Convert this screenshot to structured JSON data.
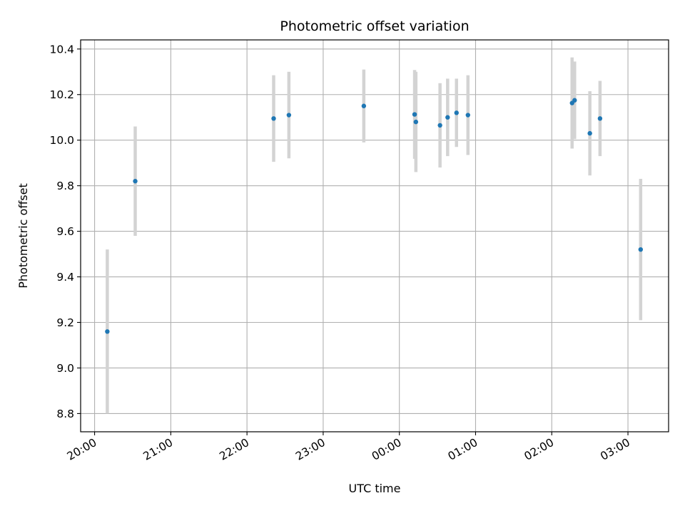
{
  "chart_data": {
    "type": "scatter",
    "title": "Photometric offset variation",
    "xlabel": "UTC time",
    "ylabel": "Photometric offset",
    "x_unit": "hours (UTC, clock time wrapping past midnight)",
    "xlim": [
      "19:49",
      "03:32"
    ],
    "ylim": [
      8.72,
      10.44
    ],
    "x_ticks": [
      "20:00",
      "21:00",
      "22:00",
      "23:00",
      "00:00",
      "01:00",
      "02:00",
      "03:00"
    ],
    "y_ticks": [
      8.8,
      9.0,
      9.2,
      9.4,
      9.6,
      9.8,
      10.0,
      10.2,
      10.4
    ],
    "y_tick_labels": [
      "8.8",
      "9.0",
      "9.2",
      "9.4",
      "9.6",
      "9.8",
      "10.0",
      "10.2",
      "10.4"
    ],
    "grid": true,
    "colors": {
      "point": "#1f77b4",
      "errorbar": "#d3d3d3",
      "grid": "#b0b0b0"
    },
    "series": [
      {
        "points": [
          {
            "x": "20:10",
            "y": 9.16,
            "yerr": 0.36
          },
          {
            "x": "20:32",
            "y": 9.82,
            "yerr": 0.24
          },
          {
            "x": "22:21",
            "y": 10.095,
            "yerr": 0.19
          },
          {
            "x": "22:33",
            "y": 10.11,
            "yerr": 0.19
          },
          {
            "x": "23:32",
            "y": 10.15,
            "yerr": 0.16
          },
          {
            "x": "00:12",
            "y": 10.113,
            "yerr": 0.195
          },
          {
            "x": "00:13",
            "y": 10.08,
            "yerr": 0.22
          },
          {
            "x": "00:32",
            "y": 10.065,
            "yerr": 0.185
          },
          {
            "x": "00:38",
            "y": 10.1,
            "yerr": 0.17
          },
          {
            "x": "00:45",
            "y": 10.12,
            "yerr": 0.15
          },
          {
            "x": "00:54",
            "y": 10.11,
            "yerr": 0.175
          },
          {
            "x": "02:16",
            "y": 10.163,
            "yerr": 0.2
          },
          {
            "x": "02:18",
            "y": 10.175,
            "yerr": 0.17
          },
          {
            "x": "02:30",
            "y": 10.03,
            "yerr": 0.185
          },
          {
            "x": "02:38",
            "y": 10.095,
            "yerr": 0.165
          },
          {
            "x": "03:10",
            "y": 9.52,
            "yerr": 0.31
          }
        ]
      }
    ]
  }
}
